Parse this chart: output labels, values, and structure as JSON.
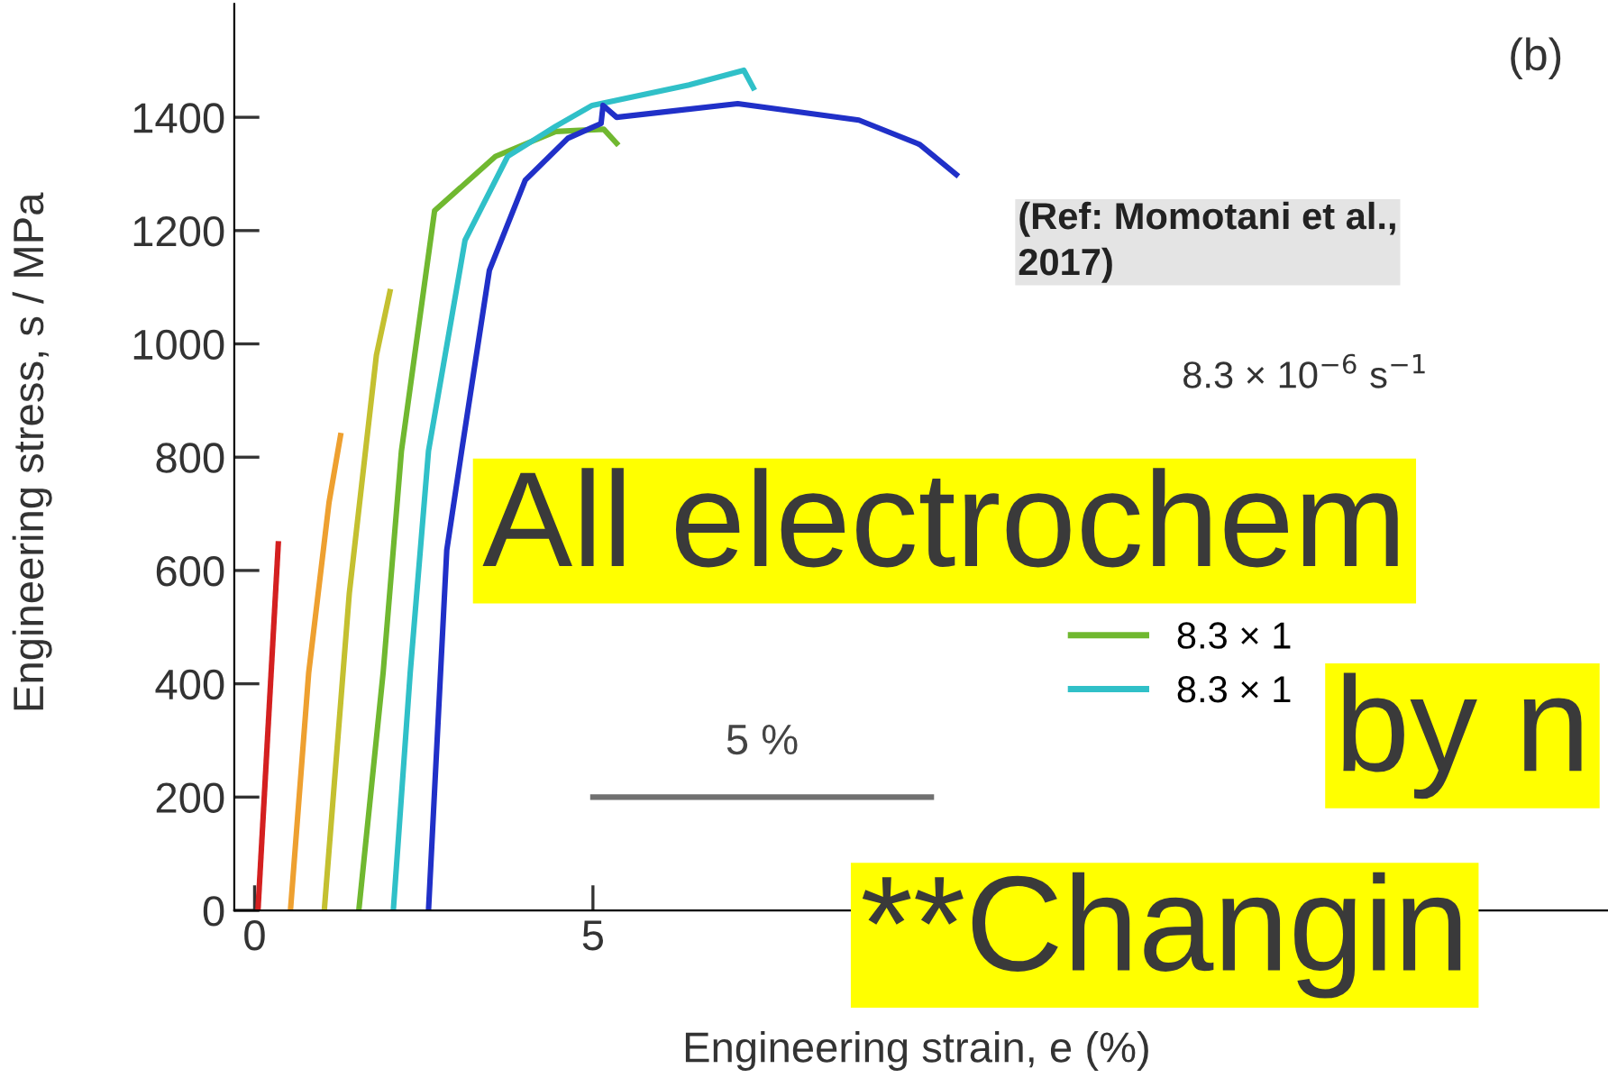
{
  "chart_data": {
    "type": "line",
    "xlabel": "Engineering strain, e (%)",
    "ylabel": "Engineering stress, s / MPa",
    "xlim": [
      -0.3,
      20
    ],
    "xticks": [
      0,
      5
    ],
    "ylim": [
      0,
      1600
    ],
    "yticks": [
      0,
      200,
      400,
      600,
      800,
      1000,
      1200,
      1400
    ],
    "grid": false,
    "legend": "right",
    "marker": "none",
    "line_style": "solid",
    "series": [
      {
        "color": "#d42020",
        "x": [
          0.05,
          0.35
        ],
        "values": [
          0,
          647
        ]
      },
      {
        "color": "#eea030",
        "x": [
          0.53,
          0.8,
          1.1,
          1.27
        ],
        "values": [
          0,
          420,
          720,
          838
        ]
      },
      {
        "color": "#c4c030",
        "x": [
          1.03,
          1.4,
          1.8,
          2.0
        ],
        "values": [
          0,
          560,
          980,
          1092
        ]
      },
      {
        "name": "8.3 × 1",
        "color": "#70b830",
        "x": [
          1.54,
          1.9,
          2.17,
          2.66,
          3.56,
          4.45,
          5.16,
          5.35
        ],
        "values": [
          0,
          420,
          811,
          1235,
          1331,
          1375,
          1379,
          1354
        ]
      },
      {
        "name": "8.3 × 1",
        "color": "#30c0c8",
        "x": [
          2.05,
          2.3,
          2.57,
          3.11,
          3.74,
          4.45,
          4.99,
          6.42,
          7.23,
          7.37
        ],
        "values": [
          0,
          420,
          811,
          1183,
          1331,
          1384,
          1421,
          1457,
          1483,
          1452
        ]
      },
      {
        "color": "#2030c8",
        "x": [
          2.57,
          2.84,
          3.06,
          3.47,
          4.0,
          4.63,
          5.12,
          5.15,
          5.35,
          7.14,
          8.93,
          9.83,
          10.37
        ],
        "values": [
          0,
          636,
          811,
          1130,
          1289,
          1363,
          1389,
          1421,
          1400,
          1424,
          1395,
          1352,
          1299
        ]
      },
      {
        "color": "#707070",
        "x": [
          5,
          10
        ],
        "values": [
          200,
          200
        ]
      }
    ],
    "annotations": [
      {
        "text": "5 %",
        "x": 7.5,
        "y": 200
      },
      "(b)",
      "(Ref: Momotani et al.,\n2017)",
      "8.3 × 10$^{−6}$ s$^{−1}$",
      "All electrochem",
      "by n",
      "**Changin"
    ]
  }
}
